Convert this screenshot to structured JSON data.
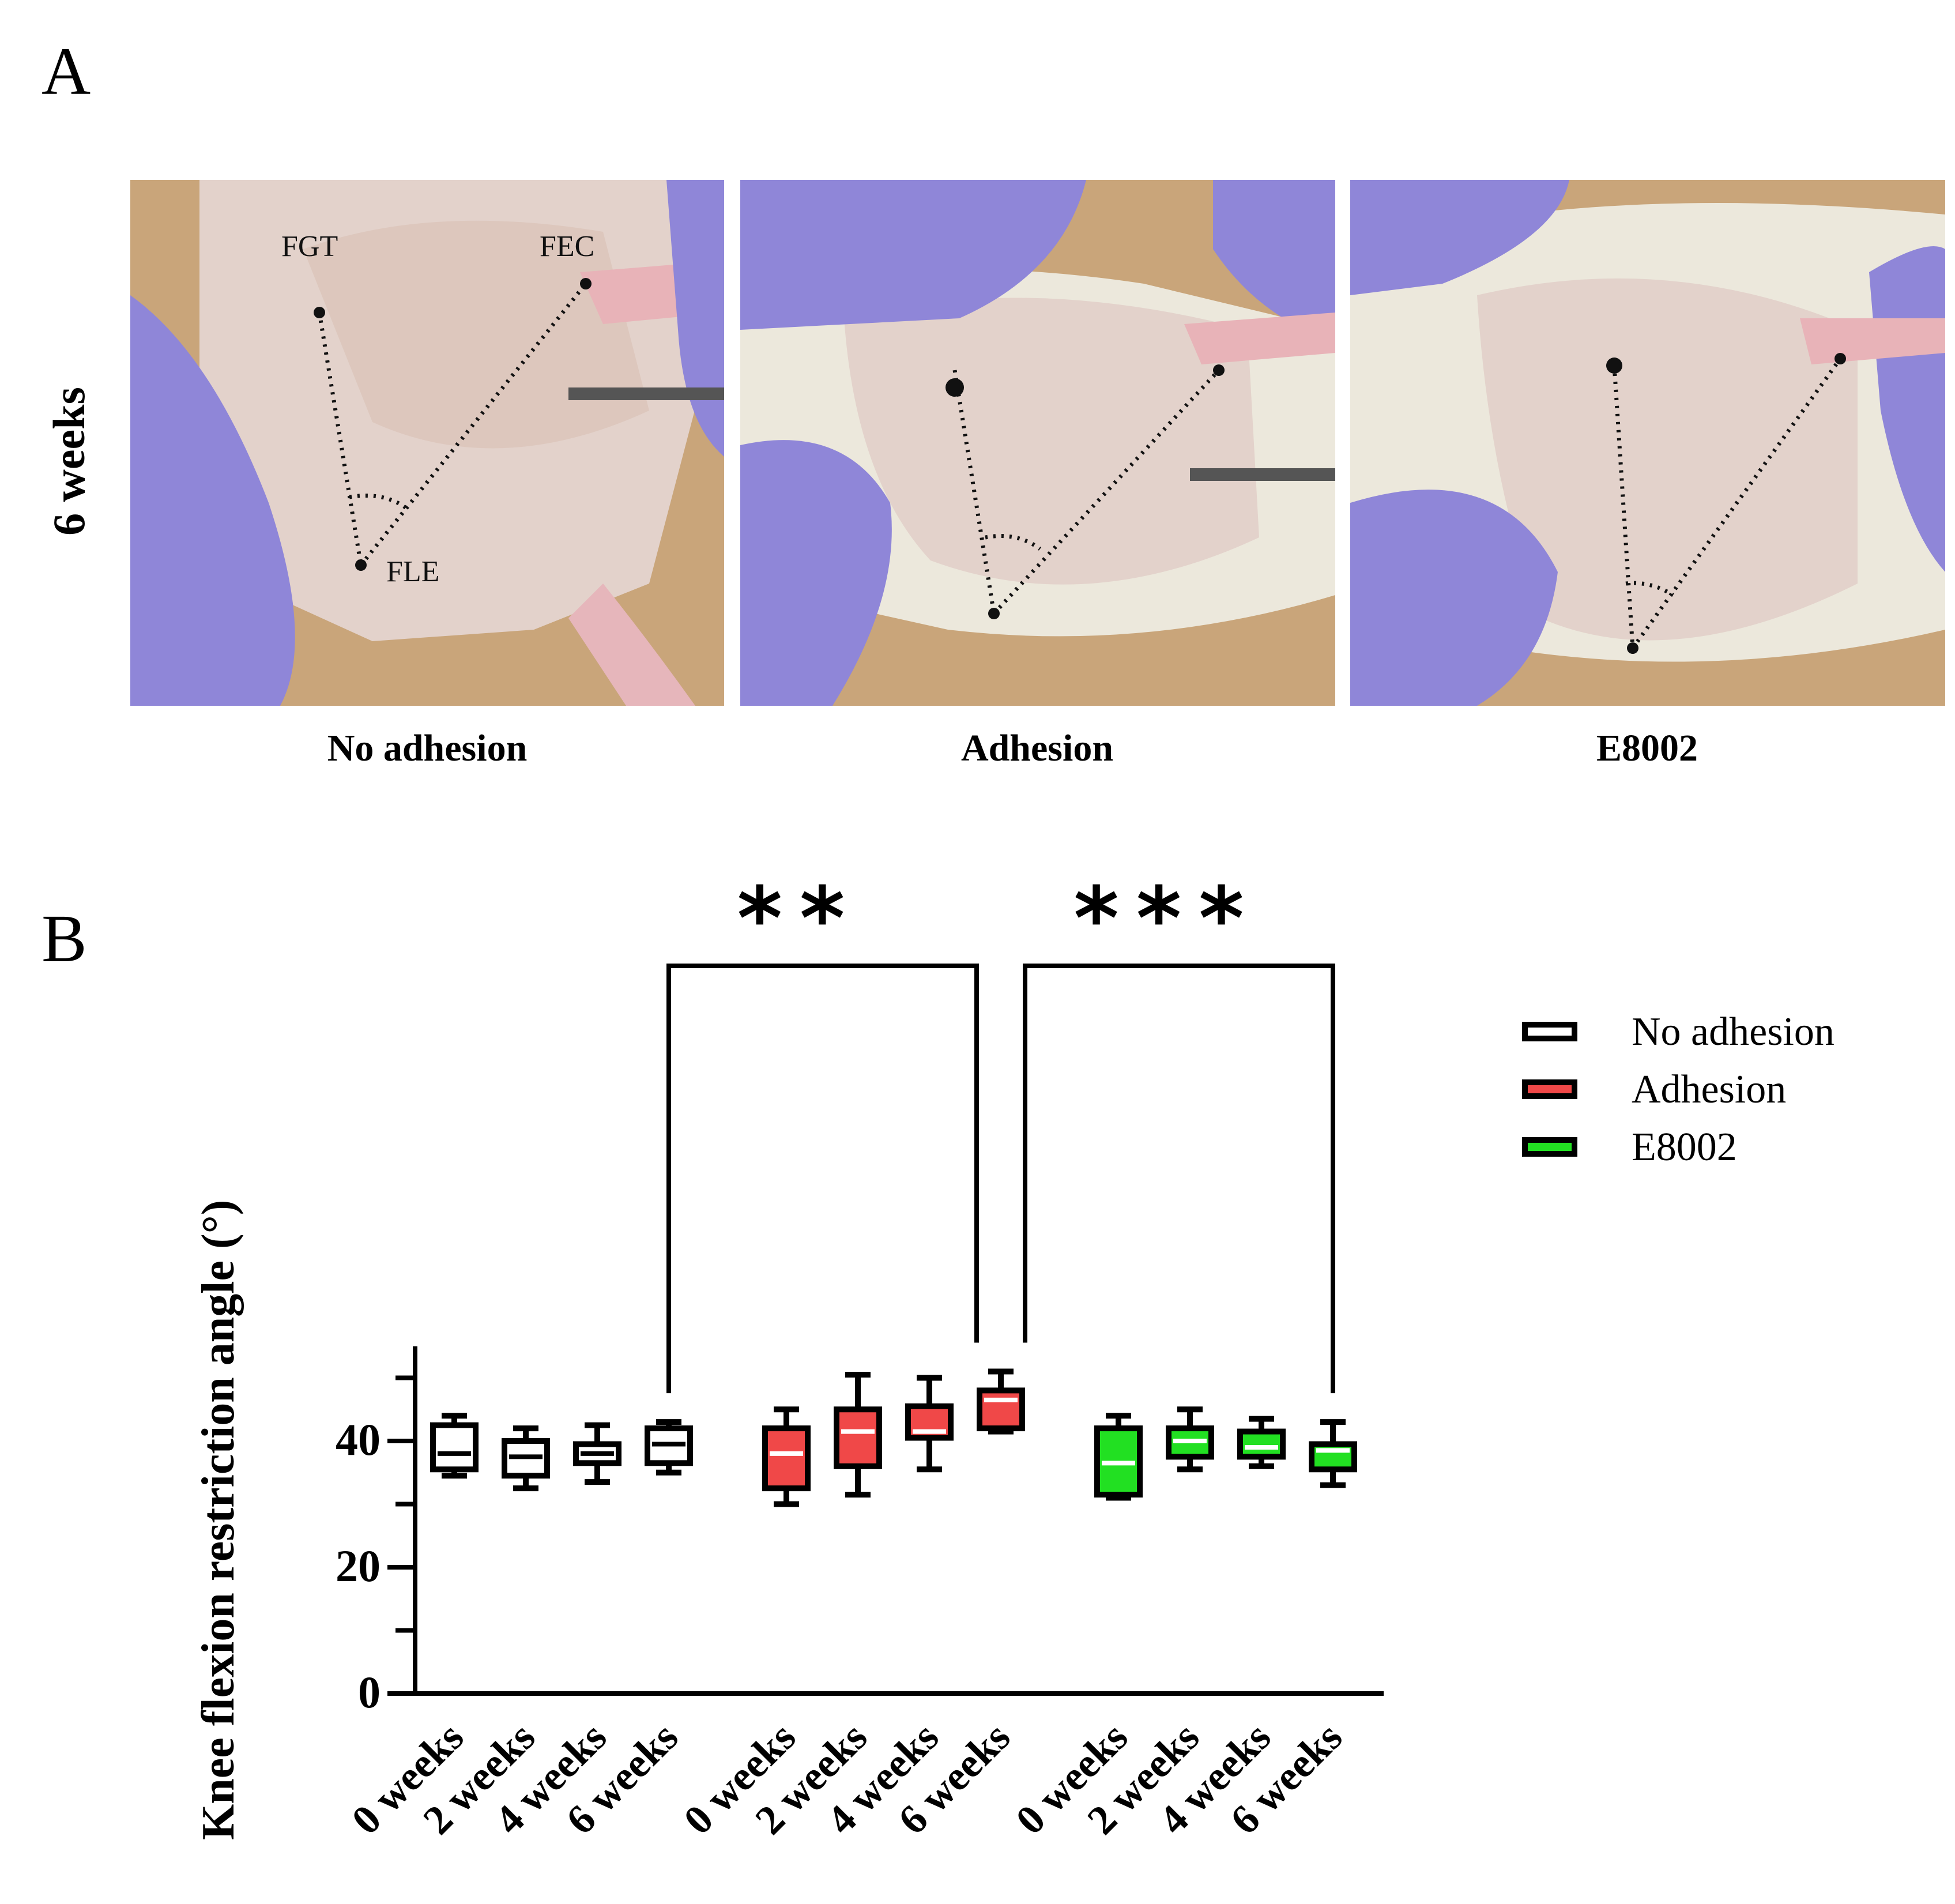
{
  "panel_a": {
    "letter": "A",
    "row_label": "6 weeks",
    "photos": [
      {
        "caption": "No adhesion",
        "landmarks": [
          "FGT",
          "FEC",
          "FLE"
        ]
      },
      {
        "caption": "Adhesion"
      },
      {
        "caption": "E8002"
      }
    ],
    "colors": {
      "glove": "#8f86d8",
      "skin": "#e3d2cb",
      "fur": "#ece8dc",
      "pad": "#c9a57a"
    }
  },
  "panel_b": {
    "letter": "B"
  },
  "chart_data": {
    "type": "box",
    "ylabel": "Knee flexion restriction angle (°)",
    "ylim": [
      0,
      55
    ],
    "yticks": [
      "0",
      "20",
      "40"
    ],
    "categories": [
      "0 weeks",
      "2 weeks",
      "4 weeks",
      "6 weeks"
    ],
    "legend_position": "right",
    "series": [
      {
        "name": "No adhesion",
        "color": "#ffffff",
        "boxes": [
          {
            "min": 34.5,
            "q1": 35.5,
            "median": 38,
            "q3": 42.5,
            "max": 44
          },
          {
            "min": 32.5,
            "q1": 34.5,
            "median": 37.5,
            "q3": 40,
            "max": 42
          },
          {
            "min": 33.5,
            "q1": 36.5,
            "median": 38,
            "q3": 39.5,
            "max": 42.5
          },
          {
            "min": 35,
            "q1": 36.5,
            "median": 39.5,
            "q3": 42,
            "max": 43
          }
        ]
      },
      {
        "name": "Adhesion",
        "color": "#f04848",
        "boxes": [
          {
            "min": 30,
            "q1": 32.5,
            "median": 38,
            "q3": 42,
            "max": 45
          },
          {
            "min": 31.5,
            "q1": 36,
            "median": 41.5,
            "q3": 45,
            "max": 50.5
          },
          {
            "min": 35.5,
            "q1": 40.5,
            "median": 41.5,
            "q3": 45.5,
            "max": 50
          },
          {
            "min": 41.5,
            "q1": 42,
            "median": 46.5,
            "q3": 48,
            "max": 51
          }
        ]
      },
      {
        "name": "E8002",
        "color": "#22e022",
        "boxes": [
          {
            "min": 31,
            "q1": 31.5,
            "median": 36.5,
            "q3": 42,
            "max": 44
          },
          {
            "min": 35.5,
            "q1": 37.5,
            "median": 40,
            "q3": 42,
            "max": 45
          },
          {
            "min": 36,
            "q1": 37.5,
            "median": 39,
            "q3": 41.5,
            "max": 43.5
          },
          {
            "min": 33,
            "q1": 35.5,
            "median": 38.5,
            "q3": 39.5,
            "max": 43
          }
        ]
      }
    ],
    "significance": [
      {
        "label": "**",
        "from": [
          0,
          3
        ],
        "to": [
          1,
          3
        ]
      },
      {
        "label": "***",
        "from": [
          1,
          3
        ],
        "to": [
          2,
          3
        ]
      }
    ]
  }
}
